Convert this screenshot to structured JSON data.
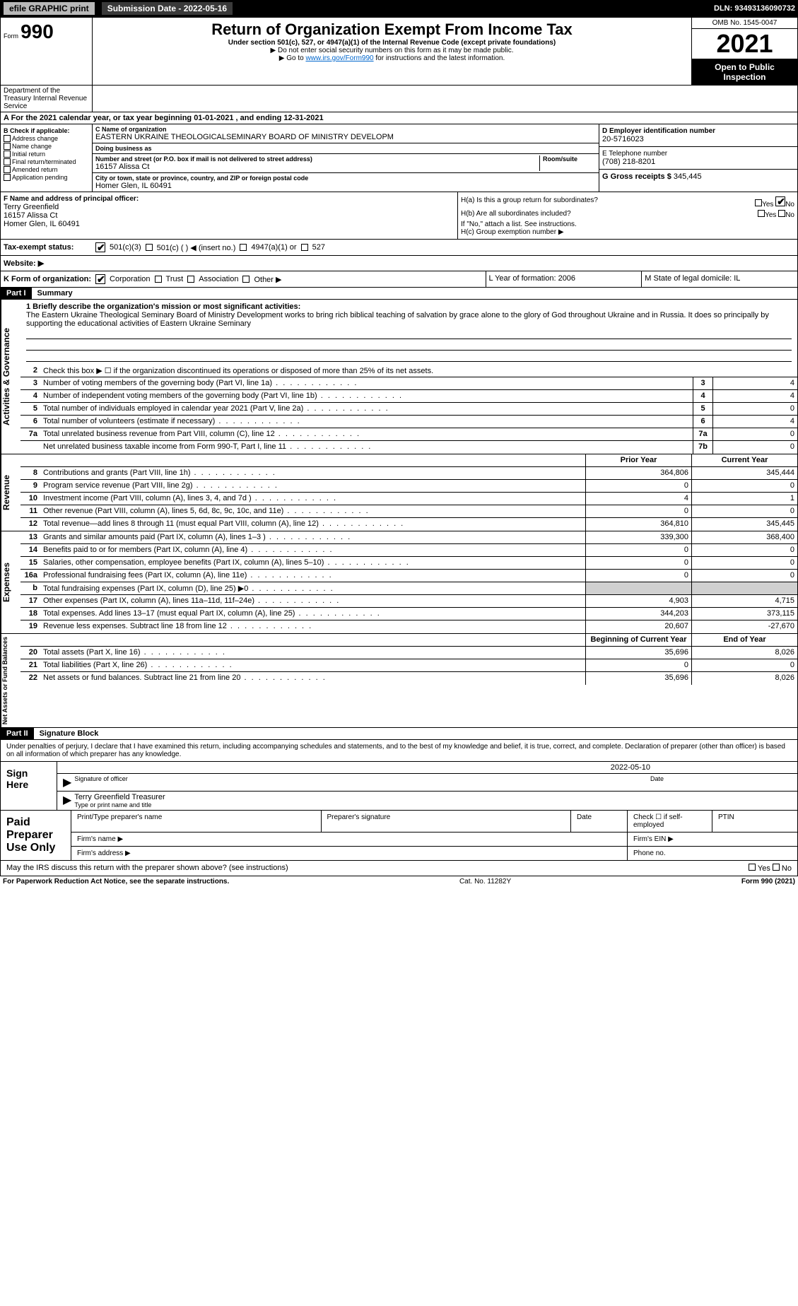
{
  "topbar": {
    "efile": "efile GRAPHIC print",
    "submission_label": "Submission Date - 2022-05-16",
    "dln": "DLN: 93493136090732"
  },
  "header": {
    "form_prefix": "Form",
    "form_num": "990",
    "title": "Return of Organization Exempt From Income Tax",
    "sub": "Under section 501(c), 527, or 4947(a)(1) of the Internal Revenue Code (except private foundations)",
    "note1": "▶ Do not enter social security numbers on this form as it may be made public.",
    "note2_pre": "▶ Go to ",
    "note2_link": "www.irs.gov/Form990",
    "note2_post": " for instructions and the latest information.",
    "omb": "OMB No. 1545-0047",
    "year": "2021",
    "open": "Open to Public Inspection",
    "dept": "Department of the Treasury Internal Revenue Service"
  },
  "calendar": "A For the 2021 calendar year, or tax year beginning 01-01-2021   , and ending 12-31-2021",
  "section_b": {
    "label": "B Check if applicable:",
    "items": [
      "Address change",
      "Name change",
      "Initial return",
      "Final return/terminated",
      "Amended return",
      "Application pending"
    ]
  },
  "section_c": {
    "name_lbl": "C Name of organization",
    "name": "EASTERN UKRAINE THEOLOGICALSEMINARY BOARD OF MINISTRY DEVELOPM",
    "dba_lbl": "Doing business as",
    "dba": "",
    "addr_lbl": "Number and street (or P.O. box if mail is not delivered to street address)",
    "room_lbl": "Room/suite",
    "addr": "16157 Alissa Ct",
    "city_lbl": "City or town, state or province, country, and ZIP or foreign postal code",
    "city": "Homer Glen, IL  60491"
  },
  "section_d": {
    "ein_lbl": "D Employer identification number",
    "ein": "20-5716023",
    "tel_lbl": "E Telephone number",
    "tel": "(708) 218-8201",
    "gross_lbl": "G Gross receipts $",
    "gross": "345,445"
  },
  "section_f": {
    "lbl": "F  Name and address of principal officer:",
    "name": "Terry Greenfield",
    "addr1": "16157 Alissa Ct",
    "addr2": "Homer Glen, IL  60491"
  },
  "section_h": {
    "ha": "H(a)  Is this a group return for subordinates?",
    "hb": "H(b)  Are all subordinates included?",
    "hb_note": "If \"No,\" attach a list. See instructions.",
    "hc": "H(c)  Group exemption number ▶",
    "yes": "Yes",
    "no": "No"
  },
  "tax_status": {
    "lbl": "Tax-exempt status:",
    "opts": [
      "501(c)(3)",
      "501(c) (  ) ◀ (insert no.)",
      "4947(a)(1) or",
      "527"
    ]
  },
  "website": {
    "lbl": "Website: ▶",
    "val": ""
  },
  "korg": {
    "lbl": "K Form of organization:",
    "opts": [
      "Corporation",
      "Trust",
      "Association",
      "Other ▶"
    ]
  },
  "lm": {
    "l": "L Year of formation: 2006",
    "m": "M State of legal domicile: IL"
  },
  "part1": {
    "hdr": "Part I",
    "title": "Summary"
  },
  "mission": {
    "lbl": "1 Briefly describe the organization's mission or most significant activities:",
    "text": "The Eastern Ukraine Theological Seminary Board of Ministry Development works to bring rich biblical teaching of salvation by grace alone to the glory of God throughout Ukraine and in Russia. It does so principally by supporting the educational activities of Eastern Ukraine Seminary"
  },
  "governance": {
    "side": "Activities & Governance",
    "rows": [
      {
        "n": "2",
        "t": "Check this box ▶ ☐ if the organization discontinued its operations or disposed of more than 25% of its net assets."
      },
      {
        "n": "3",
        "t": "Number of voting members of the governing body (Part VI, line 1a)",
        "box": "3",
        "v": "4"
      },
      {
        "n": "4",
        "t": "Number of independent voting members of the governing body (Part VI, line 1b)",
        "box": "4",
        "v": "4"
      },
      {
        "n": "5",
        "t": "Total number of individuals employed in calendar year 2021 (Part V, line 2a)",
        "box": "5",
        "v": "0"
      },
      {
        "n": "6",
        "t": "Total number of volunteers (estimate if necessary)",
        "box": "6",
        "v": "4"
      },
      {
        "n": "7a",
        "t": "Total unrelated business revenue from Part VIII, column (C), line 12",
        "box": "7a",
        "v": "0"
      },
      {
        "n": "",
        "t": "Net unrelated business taxable income from Form 990-T, Part I, line 11",
        "box": "7b",
        "v": "0"
      }
    ]
  },
  "revenue": {
    "side": "Revenue",
    "hdr_prior": "Prior Year",
    "hdr_curr": "Current Year",
    "rows": [
      {
        "n": "8",
        "t": "Contributions and grants (Part VIII, line 1h)",
        "p": "364,806",
        "c": "345,444"
      },
      {
        "n": "9",
        "t": "Program service revenue (Part VIII, line 2g)",
        "p": "0",
        "c": "0"
      },
      {
        "n": "10",
        "t": "Investment income (Part VIII, column (A), lines 3, 4, and 7d )",
        "p": "4",
        "c": "1"
      },
      {
        "n": "11",
        "t": "Other revenue (Part VIII, column (A), lines 5, 6d, 8c, 9c, 10c, and 11e)",
        "p": "0",
        "c": "0"
      },
      {
        "n": "12",
        "t": "Total revenue—add lines 8 through 11 (must equal Part VIII, column (A), line 12)",
        "p": "364,810",
        "c": "345,445"
      }
    ]
  },
  "expenses": {
    "side": "Expenses",
    "rows": [
      {
        "n": "13",
        "t": "Grants and similar amounts paid (Part IX, column (A), lines 1–3 )",
        "p": "339,300",
        "c": "368,400"
      },
      {
        "n": "14",
        "t": "Benefits paid to or for members (Part IX, column (A), line 4)",
        "p": "0",
        "c": "0"
      },
      {
        "n": "15",
        "t": "Salaries, other compensation, employee benefits (Part IX, column (A), lines 5–10)",
        "p": "0",
        "c": "0"
      },
      {
        "n": "16a",
        "t": "Professional fundraising fees (Part IX, column (A), line 11e)",
        "p": "0",
        "c": "0"
      },
      {
        "n": "b",
        "t": "Total fundraising expenses (Part IX, column (D), line 25) ▶0",
        "p": "",
        "c": "",
        "shaded": true
      },
      {
        "n": "17",
        "t": "Other expenses (Part IX, column (A), lines 11a–11d, 11f–24e)",
        "p": "4,903",
        "c": "4,715"
      },
      {
        "n": "18",
        "t": "Total expenses. Add lines 13–17 (must equal Part IX, column (A), line 25)",
        "p": "344,203",
        "c": "373,115"
      },
      {
        "n": "19",
        "t": "Revenue less expenses. Subtract line 18 from line 12",
        "p": "20,607",
        "c": "-27,670"
      }
    ]
  },
  "netassets": {
    "side": "Net Assets or Fund Balances",
    "hdr_begin": "Beginning of Current Year",
    "hdr_end": "End of Year",
    "rows": [
      {
        "n": "20",
        "t": "Total assets (Part X, line 16)",
        "p": "35,696",
        "c": "8,026"
      },
      {
        "n": "21",
        "t": "Total liabilities (Part X, line 26)",
        "p": "0",
        "c": "0"
      },
      {
        "n": "22",
        "t": "Net assets or fund balances. Subtract line 21 from line 20",
        "p": "35,696",
        "c": "8,026"
      }
    ]
  },
  "part2": {
    "hdr": "Part II",
    "title": "Signature Block"
  },
  "penalty": "Under penalties of perjury, I declare that I have examined this return, including accompanying schedules and statements, and to the best of my knowledge and belief, it is true, correct, and complete. Declaration of preparer (other than officer) is based on all information of which preparer has any knowledge.",
  "sign": {
    "lbl": "Sign Here",
    "date": "2022-05-10",
    "sig_lbl": "Signature of officer",
    "date_lbl": "Date",
    "name": "Terry Greenfield Treasurer",
    "name_lbl": "Type or print name and title"
  },
  "paid": {
    "lbl": "Paid Preparer Use Only",
    "h1": "Print/Type preparer's name",
    "h2": "Preparer's signature",
    "h3": "Date",
    "h4": "Check ☐ if self-employed",
    "h5": "PTIN",
    "firm_name": "Firm's name   ▶",
    "firm_ein": "Firm's EIN ▶",
    "firm_addr": "Firm's address ▶",
    "phone": "Phone no."
  },
  "irs_discuss": "May the IRS discuss this return with the preparer shown above? (see instructions)",
  "footer": {
    "left": "For Paperwork Reduction Act Notice, see the separate instructions.",
    "mid": "Cat. No. 11282Y",
    "right": "Form 990 (2021)"
  }
}
